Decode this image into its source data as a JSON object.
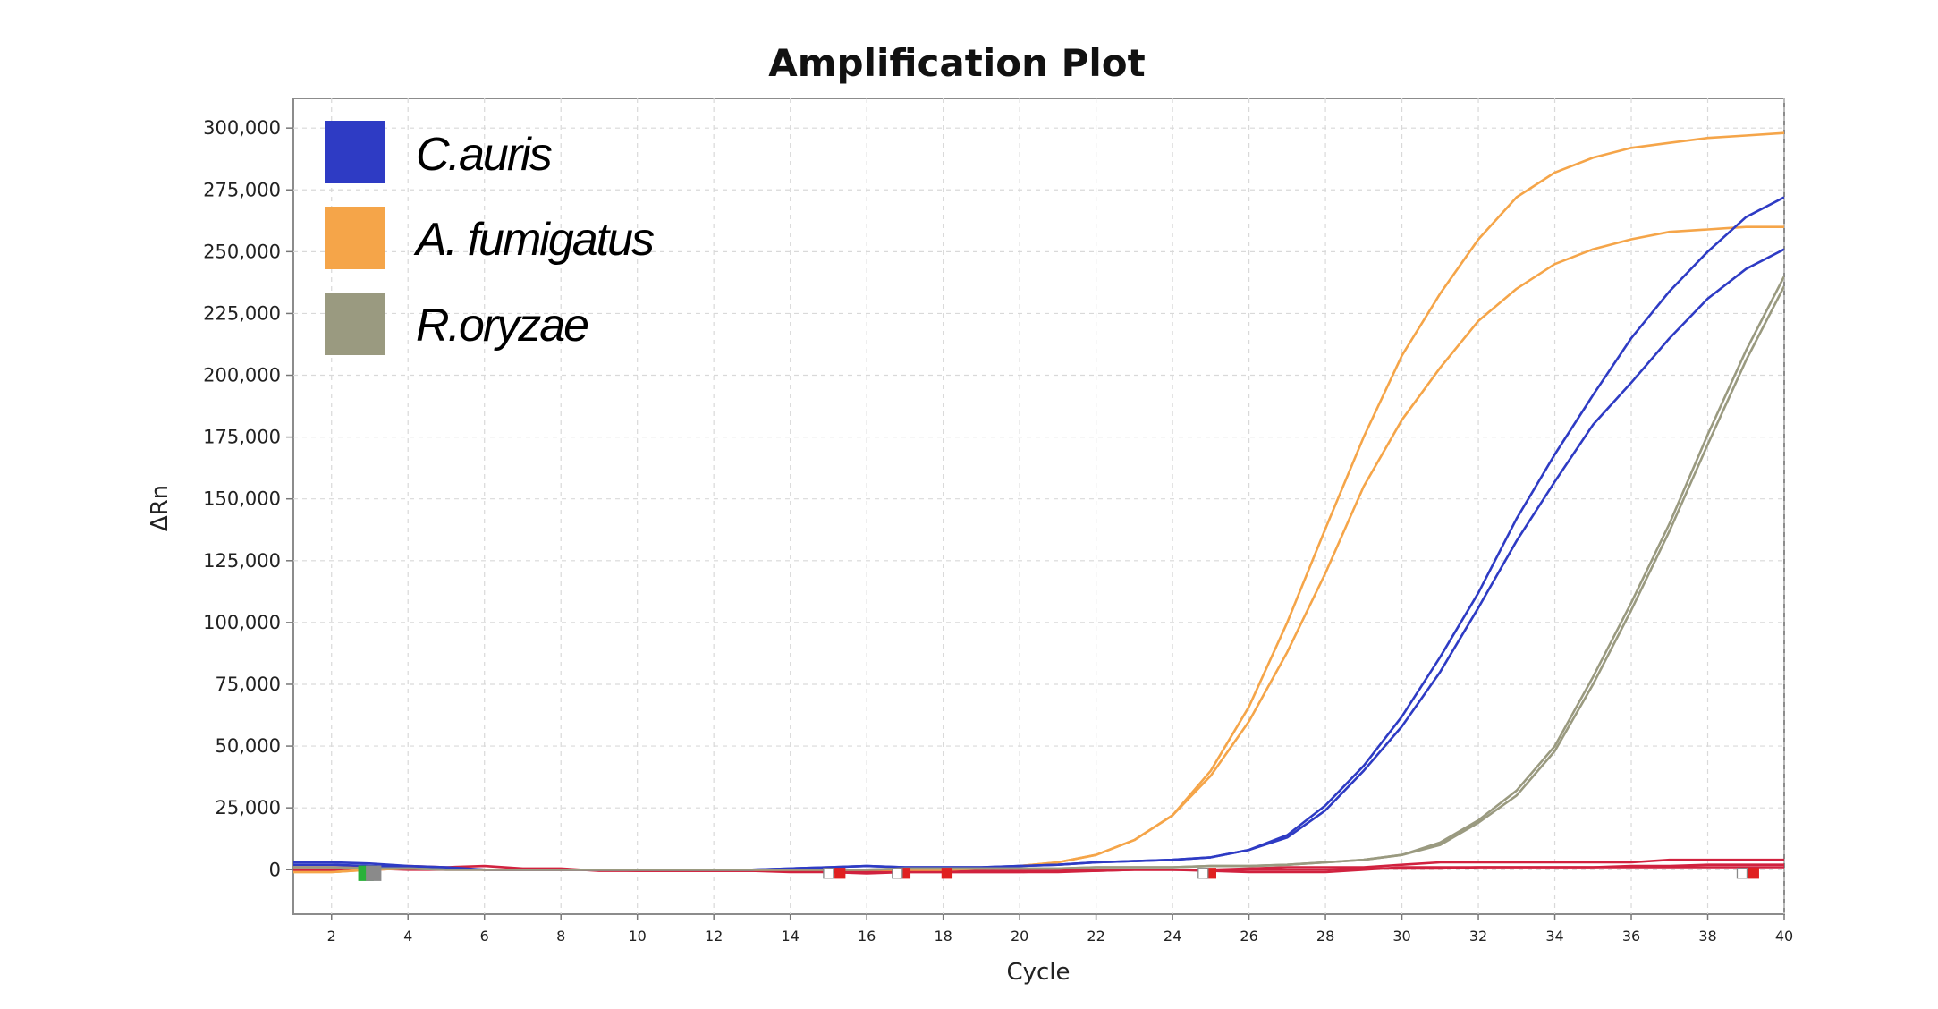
{
  "chart_data": {
    "type": "line",
    "title": "Amplification Plot",
    "xlabel": "Cycle",
    "ylabel": "ΔRn",
    "xlim": [
      1,
      40
    ],
    "ylim": [
      -18000,
      312000
    ],
    "x_ticks": [
      2,
      4,
      6,
      8,
      10,
      12,
      14,
      16,
      18,
      20,
      22,
      24,
      26,
      28,
      30,
      32,
      34,
      36,
      38,
      40
    ],
    "x_tick_labels": [
      "2",
      "4",
      "6",
      "8",
      "10",
      "12",
      "14",
      "16",
      "18",
      "20",
      "22",
      "24",
      "26",
      "28",
      "30",
      "32",
      "34",
      "36",
      "38",
      "40"
    ],
    "y_ticks": [
      0,
      25000,
      50000,
      75000,
      100000,
      125000,
      150000,
      175000,
      200000,
      225000,
      250000,
      275000,
      300000
    ],
    "y_tick_labels": [
      "0",
      "25,000",
      "50,000",
      "75,000",
      "100,000",
      "125,000",
      "150,000",
      "175,000",
      "200,000",
      "225,000",
      "250,000",
      "275,000",
      "300,000"
    ],
    "grid": true,
    "legend": {
      "position": "top-left",
      "entries": [
        {
          "label": "C.auris",
          "color": "#2e3bc4"
        },
        {
          "label": "A. fumigatus",
          "color": "#f5a549"
        },
        {
          "label": "R.oryzae",
          "color": "#9a9a80"
        }
      ]
    },
    "x": [
      1,
      2,
      3,
      4,
      5,
      6,
      7,
      8,
      9,
      10,
      11,
      12,
      13,
      14,
      15,
      16,
      17,
      18,
      19,
      20,
      21,
      22,
      23,
      24,
      25,
      26,
      27,
      28,
      29,
      30,
      31,
      32,
      33,
      34,
      35,
      36,
      37,
      38,
      39,
      40
    ],
    "series": [
      {
        "group": "A. fumigatus",
        "color": "#f5a549",
        "values": [
          -1000,
          -1000,
          0,
          500,
          500,
          0,
          0,
          0,
          0,
          0,
          0,
          0,
          0,
          0,
          0,
          0,
          0,
          0,
          500,
          1500,
          3000,
          6000,
          12000,
          22000,
          40000,
          66000,
          100000,
          138000,
          175000,
          208000,
          233000,
          255000,
          272000,
          282000,
          288000,
          292000,
          294000,
          296000,
          297000,
          298000
        ]
      },
      {
        "group": "A. fumigatus",
        "color": "#f5a549",
        "values": [
          -1000,
          -1000,
          0,
          500,
          500,
          0,
          0,
          0,
          0,
          0,
          0,
          0,
          0,
          0,
          0,
          0,
          0,
          0,
          500,
          1500,
          3000,
          6000,
          12000,
          22000,
          38000,
          60000,
          88000,
          120000,
          155000,
          182000,
          203000,
          222000,
          235000,
          245000,
          251000,
          255000,
          258000,
          259000,
          260000,
          260000
        ]
      },
      {
        "group": "C.auris",
        "color": "#2e3bc4",
        "values": [
          3000,
          3000,
          2500,
          1500,
          1000,
          0,
          0,
          0,
          0,
          0,
          0,
          0,
          0,
          500,
          1000,
          1500,
          1000,
          1000,
          1000,
          1500,
          2000,
          3000,
          3500,
          4000,
          5000,
          8000,
          14000,
          26000,
          42000,
          62000,
          86000,
          112000,
          142000,
          168000,
          192000,
          215000,
          234000,
          250000,
          264000,
          272000
        ]
      },
      {
        "group": "C.auris",
        "color": "#2e3bc4",
        "values": [
          2000,
          2000,
          1500,
          1000,
          500,
          0,
          0,
          0,
          0,
          0,
          0,
          0,
          0,
          500,
          1000,
          1500,
          1000,
          1000,
          1000,
          1500,
          2000,
          3000,
          3500,
          4000,
          5000,
          8000,
          13000,
          24000,
          40000,
          58000,
          80000,
          106000,
          133000,
          157000,
          180000,
          197000,
          215000,
          231000,
          243000,
          251000
        ]
      },
      {
        "group": "R.oryzae",
        "color": "#9a9a80",
        "values": [
          1000,
          1000,
          500,
          500,
          0,
          0,
          0,
          0,
          0,
          0,
          0,
          0,
          0,
          0,
          0,
          0,
          500,
          500,
          500,
          500,
          500,
          1000,
          1000,
          1000,
          1500,
          1500,
          2000,
          3000,
          4000,
          6000,
          11000,
          20000,
          32000,
          50000,
          78000,
          108000,
          140000,
          176000,
          210000,
          240000
        ]
      },
      {
        "group": "R.oryzae",
        "color": "#9a9a80",
        "values": [
          1000,
          1000,
          500,
          500,
          0,
          0,
          0,
          0,
          0,
          0,
          0,
          0,
          0,
          0,
          0,
          0,
          500,
          500,
          500,
          500,
          500,
          1000,
          1000,
          1000,
          1500,
          1500,
          2000,
          3000,
          4000,
          6000,
          10000,
          19000,
          30000,
          48000,
          75000,
          105000,
          137000,
          172000,
          206000,
          236000
        ]
      },
      {
        "group": "",
        "color": "#d1223f",
        "values": [
          1000,
          1000,
          1000,
          1500,
          1000,
          1500,
          500,
          500,
          -500,
          -500,
          -500,
          -500,
          -500,
          -1000,
          -1000,
          -1500,
          -1000,
          -1000,
          -1000,
          -1000,
          -1000,
          -500,
          0,
          0,
          0,
          500,
          1000,
          1000,
          1000,
          2000,
          3000,
          3000,
          3000,
          3000,
          3000,
          3000,
          4000,
          4000,
          4000,
          4000
        ]
      },
      {
        "group": "",
        "color": "#d1223f",
        "values": [
          -500,
          -500,
          0,
          500,
          500,
          0,
          0,
          0,
          0,
          -500,
          -500,
          -500,
          -500,
          -500,
          -1000,
          -1000,
          -1000,
          -1000,
          -1000,
          -1000,
          -500,
          -500,
          0,
          0,
          -500,
          -1000,
          -1000,
          -1000,
          0,
          1000,
          1000,
          1000,
          1000,
          1000,
          1000,
          1000,
          1000,
          1000,
          1000,
          1000
        ]
      },
      {
        "group": "",
        "color": "#d1223f",
        "values": [
          0,
          0,
          500,
          0,
          0,
          0,
          0,
          0,
          0,
          0,
          0,
          0,
          0,
          0,
          -500,
          -500,
          -500,
          -500,
          -500,
          -500,
          -500,
          0,
          0,
          0,
          0,
          0,
          0,
          0,
          500,
          500,
          500,
          1000,
          1000,
          1000,
          1000,
          1500,
          1500,
          2000,
          2000,
          2000
        ]
      }
    ],
    "markers": [
      {
        "x": 2.9,
        "color": "#2ab13a"
      },
      {
        "x": 3.1,
        "color": "#8a8a8a"
      },
      {
        "x": 15.0,
        "color": "#ffffff"
      },
      {
        "x": 15.3,
        "color": "#e02020"
      },
      {
        "x": 17.0,
        "color": "#e02020"
      },
      {
        "x": 16.8,
        "color": "#ffffff"
      },
      {
        "x": 18.1,
        "color": "#e02020"
      },
      {
        "x": 25.0,
        "color": "#e02020"
      },
      {
        "x": 24.8,
        "color": "#ffffff"
      },
      {
        "x": 38.9,
        "color": "#ffffff"
      },
      {
        "x": 39.2,
        "color": "#e02020"
      }
    ]
  }
}
